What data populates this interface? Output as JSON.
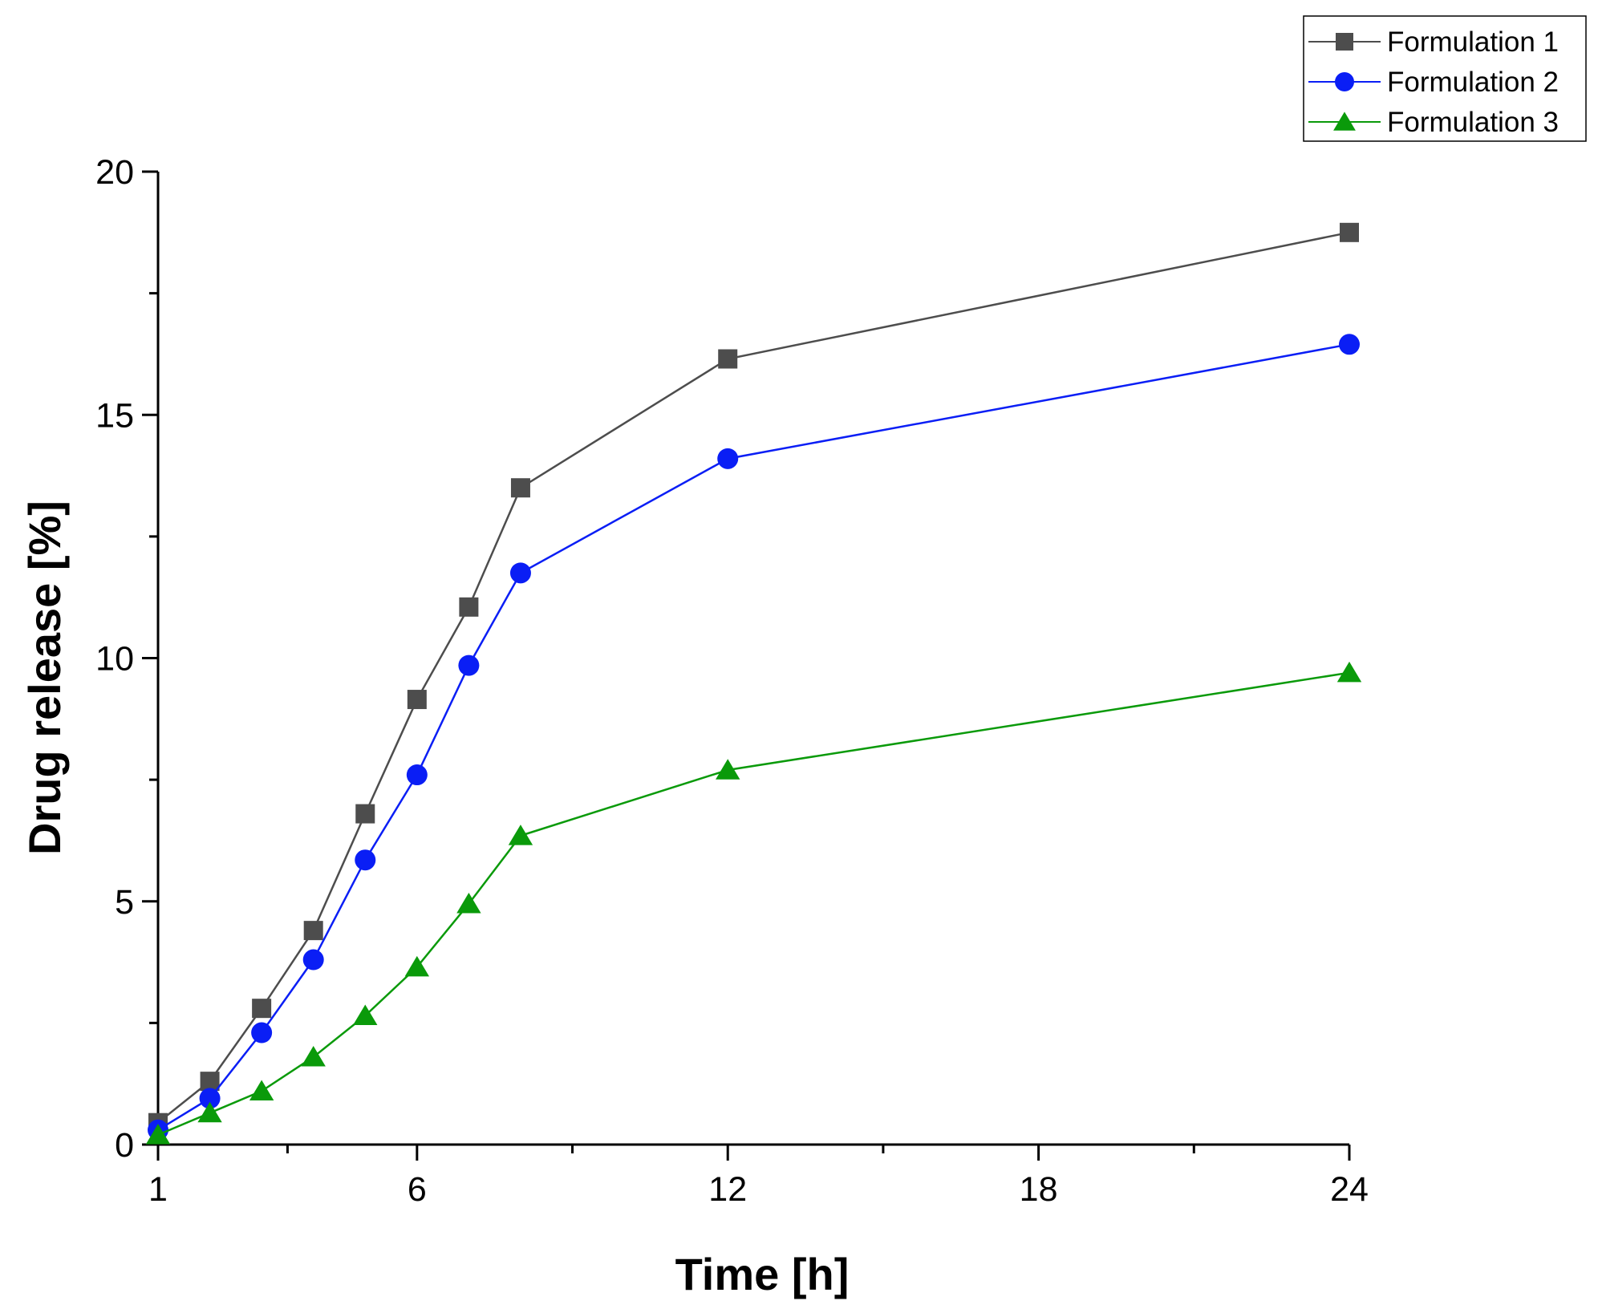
{
  "chart_data": {
    "type": "line",
    "title": "",
    "xlabel": "Time [h]",
    "ylabel": "Drug release [%]",
    "xlim": [
      1,
      24
    ],
    "ylim": [
      0,
      20
    ],
    "x_ticks": [
      1,
      6,
      12,
      18,
      24
    ],
    "x_minor_ticks": [
      3.5,
      9,
      15,
      21
    ],
    "y_ticks": [
      0,
      5,
      10,
      15,
      20
    ],
    "y_minor_ticks": [
      2.5,
      7.5,
      12.5,
      17.5
    ],
    "x": [
      1,
      2,
      3,
      4,
      5,
      6,
      7,
      8,
      12,
      24
    ],
    "grid": false,
    "legend_position": "top-right",
    "series": [
      {
        "name": "Formulation 1",
        "marker": "square",
        "color": "#4d4d4d",
        "values": [
          0.45,
          1.3,
          2.8,
          4.4,
          6.8,
          9.15,
          11.05,
          13.5,
          16.15,
          18.75
        ]
      },
      {
        "name": "Formulation 2",
        "marker": "circle",
        "color": "#0a1ef5",
        "values": [
          0.3,
          0.95,
          2.3,
          3.8,
          5.85,
          7.6,
          9.85,
          11.75,
          14.1,
          16.45
        ]
      },
      {
        "name": "Formulation 3",
        "marker": "triangle",
        "color": "#0a9a0a",
        "values": [
          0.2,
          0.65,
          1.1,
          1.8,
          2.65,
          3.65,
          4.95,
          6.35,
          7.7,
          9.7
        ]
      }
    ]
  }
}
